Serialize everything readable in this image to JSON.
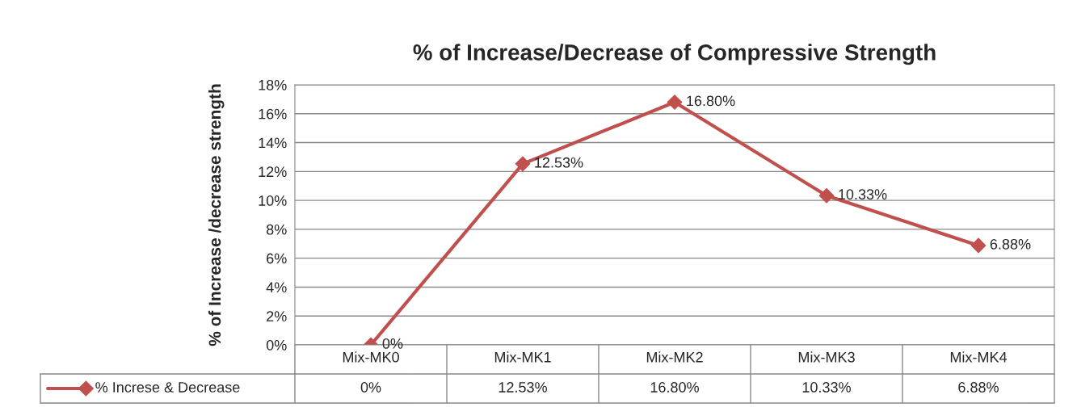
{
  "chart_data": {
    "type": "line",
    "title": "% of Increase/Decrease of Compressive Strength",
    "ylabel": "% of Increase /decrease strength",
    "categories": [
      "Mix-MK0",
      "Mix-MK1",
      "Mix-MK2",
      "Mix-MK3",
      "Mix-MK4"
    ],
    "series": [
      {
        "name": "% Increse & Decrease",
        "color": "#c0504d",
        "values": [
          0,
          12.53,
          16.8,
          10.33,
          6.88
        ],
        "value_labels": [
          "0%",
          "12.53%",
          "16.80%",
          "10.33%",
          "6.88%"
        ]
      }
    ],
    "ylim": [
      0,
      18
    ],
    "yticks": [
      {
        "value": 0,
        "label": "0%"
      },
      {
        "value": 2,
        "label": "2%"
      },
      {
        "value": 4,
        "label": "4%"
      },
      {
        "value": 6,
        "label": "6%"
      },
      {
        "value": 8,
        "label": "8%"
      },
      {
        "value": 10,
        "label": "10%"
      },
      {
        "value": 12,
        "label": "12%"
      },
      {
        "value": 14,
        "label": "14%"
      },
      {
        "value": 16,
        "label": "16%"
      },
      {
        "value": 18,
        "label": "18%"
      }
    ],
    "grid": "y",
    "legend": "bottom",
    "marker": "diamond",
    "line_style": "solid"
  }
}
